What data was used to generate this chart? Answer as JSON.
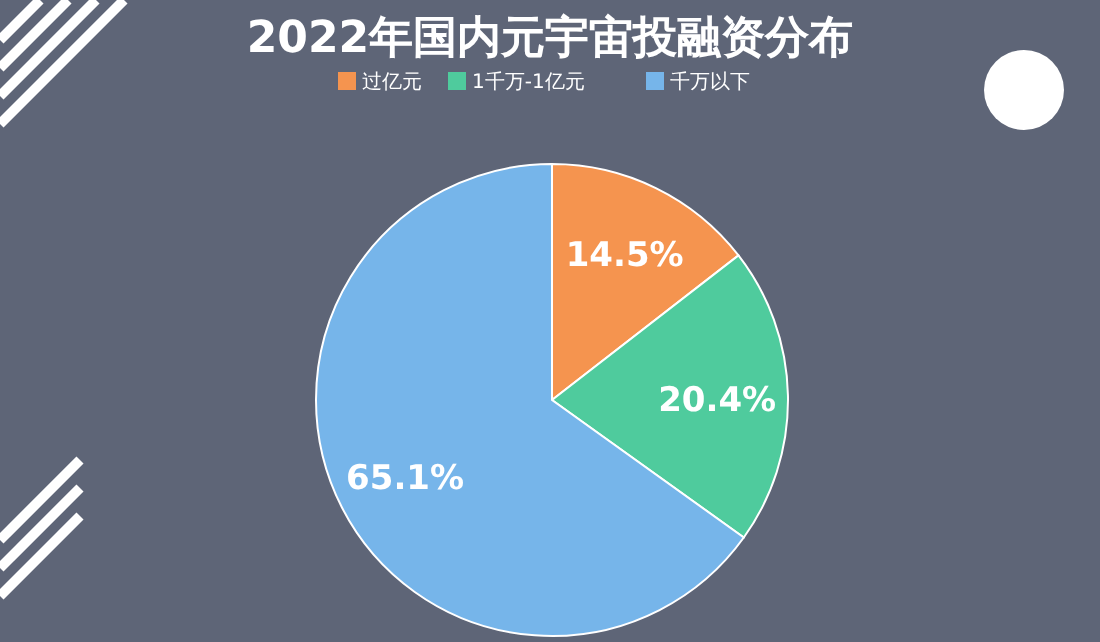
{
  "chart_data": {
    "type": "pie",
    "title": "2022年国内元宇宙投融资分布",
    "categories": [
      "过亿元",
      "1千万-1亿元",
      "千万以下"
    ],
    "values": [
      14.5,
      20.4,
      65.1
    ],
    "colors": [
      "#f5944f",
      "#4fcb9d",
      "#76b5ea"
    ],
    "legend": "top",
    "value_labels": [
      "14.5%",
      "20.4%",
      "65.1%"
    ]
  }
}
